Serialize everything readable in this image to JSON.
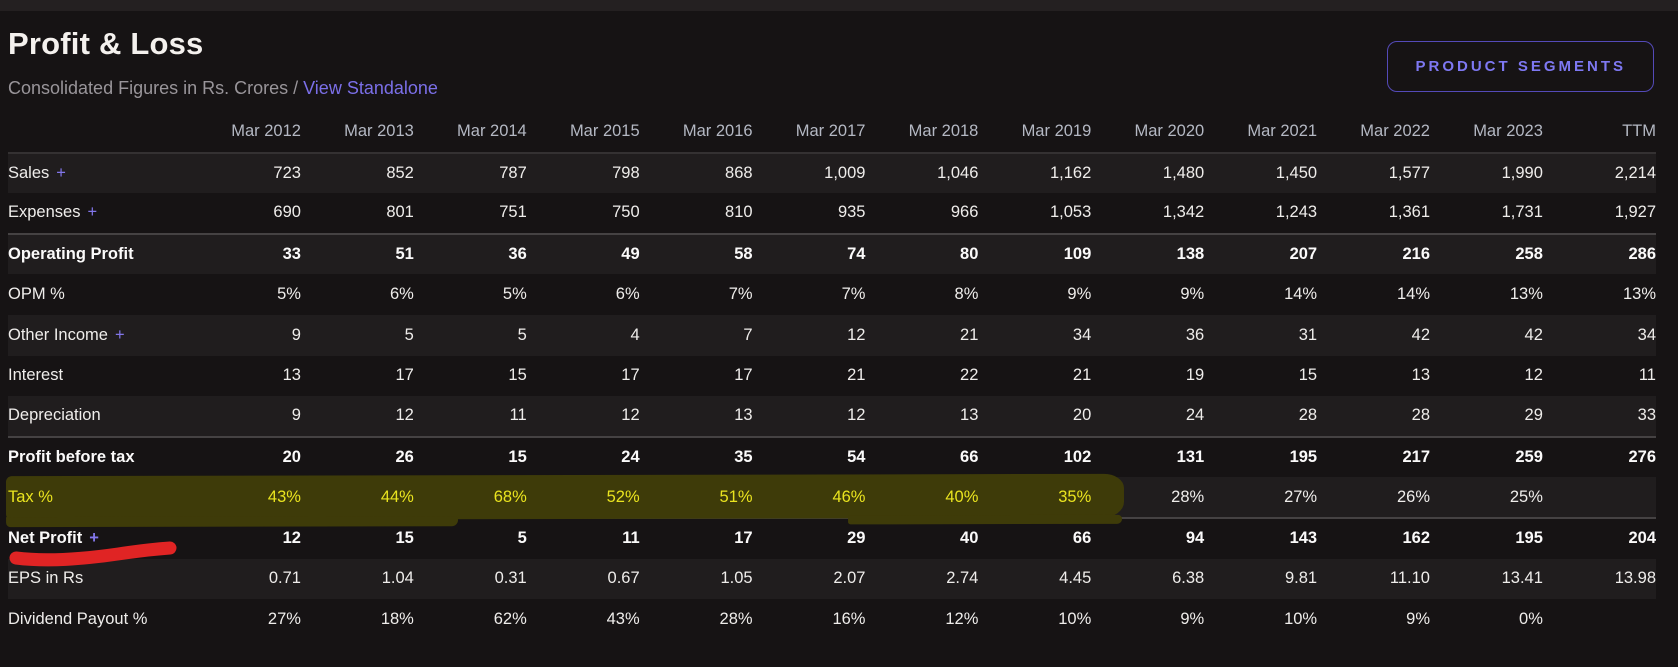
{
  "header": {
    "title": "Profit & Loss",
    "subtitle_prefix": "Consolidated Figures in Rs. Crores / ",
    "standalone_link": "View Standalone",
    "segments_button": "PRODUCT SEGMENTS"
  },
  "table": {
    "columns": [
      "Mar 2012",
      "Mar 2013",
      "Mar 2014",
      "Mar 2015",
      "Mar 2016",
      "Mar 2017",
      "Mar 2018",
      "Mar 2019",
      "Mar 2020",
      "Mar 2021",
      "Mar 2022",
      "Mar 2023",
      "TTM"
    ],
    "rows": [
      {
        "label": "Sales",
        "plus": true,
        "bold": false,
        "section": false,
        "values": [
          "723",
          "852",
          "787",
          "798",
          "868",
          "1,009",
          "1,046",
          "1,162",
          "1,480",
          "1,450",
          "1,577",
          "1,990",
          "2,214"
        ]
      },
      {
        "label": "Expenses",
        "plus": true,
        "bold": false,
        "section": false,
        "values": [
          "690",
          "801",
          "751",
          "750",
          "810",
          "935",
          "966",
          "1,053",
          "1,342",
          "1,243",
          "1,361",
          "1,731",
          "1,927"
        ]
      },
      {
        "label": "Operating Profit",
        "plus": false,
        "bold": true,
        "section": true,
        "values": [
          "33",
          "51",
          "36",
          "49",
          "58",
          "74",
          "80",
          "109",
          "138",
          "207",
          "216",
          "258",
          "286"
        ]
      },
      {
        "label": "OPM %",
        "plus": false,
        "bold": false,
        "section": false,
        "values": [
          "5%",
          "6%",
          "5%",
          "6%",
          "7%",
          "7%",
          "8%",
          "9%",
          "9%",
          "14%",
          "14%",
          "13%",
          "13%"
        ]
      },
      {
        "label": "Other Income",
        "plus": true,
        "bold": false,
        "section": false,
        "values": [
          "9",
          "5",
          "5",
          "4",
          "7",
          "12",
          "21",
          "34",
          "36",
          "31",
          "42",
          "42",
          "34"
        ]
      },
      {
        "label": "Interest",
        "plus": false,
        "bold": false,
        "section": false,
        "values": [
          "13",
          "17",
          "15",
          "17",
          "17",
          "21",
          "22",
          "21",
          "19",
          "15",
          "13",
          "12",
          "11"
        ]
      },
      {
        "label": "Depreciation",
        "plus": false,
        "bold": false,
        "section": false,
        "values": [
          "9",
          "12",
          "11",
          "12",
          "13",
          "12",
          "13",
          "20",
          "24",
          "28",
          "28",
          "29",
          "33"
        ]
      },
      {
        "label": "Profit before tax",
        "plus": false,
        "bold": true,
        "section": true,
        "values": [
          "20",
          "26",
          "15",
          "24",
          "35",
          "54",
          "66",
          "102",
          "131",
          "195",
          "217",
          "259",
          "276"
        ]
      },
      {
        "label": "Tax %",
        "plus": false,
        "bold": false,
        "section": false,
        "highlight": true,
        "highlight_count": 8,
        "values": [
          "43%",
          "44%",
          "68%",
          "52%",
          "51%",
          "46%",
          "40%",
          "35%",
          "28%",
          "27%",
          "26%",
          "25%",
          ""
        ]
      },
      {
        "label": "Net Profit",
        "plus": true,
        "bold": true,
        "section": true,
        "values": [
          "12",
          "15",
          "5",
          "11",
          "17",
          "29",
          "40",
          "66",
          "94",
          "143",
          "162",
          "195",
          "204"
        ]
      },
      {
        "label": "EPS in Rs",
        "plus": false,
        "bold": false,
        "section": false,
        "values": [
          "0.71",
          "1.04",
          "0.31",
          "0.67",
          "1.05",
          "2.07",
          "2.74",
          "4.45",
          "6.38",
          "9.81",
          "11.10",
          "13.41",
          "13.98"
        ]
      },
      {
        "label": "Dividend Payout %",
        "plus": false,
        "bold": false,
        "section": false,
        "values": [
          "27%",
          "18%",
          "62%",
          "43%",
          "28%",
          "16%",
          "12%",
          "10%",
          "9%",
          "10%",
          "9%",
          "0%",
          ""
        ]
      }
    ]
  },
  "annotations": {
    "highlight": {
      "type": "marker-highlight",
      "row": "Tax %",
      "from_column": "Mar 2012",
      "to_column": "Mar 2019",
      "band_color": "#3e3b09",
      "text_color": "#eae41f"
    },
    "underline": {
      "type": "hand-drawn-stroke",
      "under": "Tax %",
      "color": "#e02424"
    }
  },
  "colors": {
    "page_bg": "#161314",
    "row_light": "#201d1e",
    "row_dark": "#161314",
    "section_divider": "#454243",
    "header_text": "#b4b8c3",
    "body_text": "#efedeb",
    "accent_purple": "#7b6fe8",
    "button_purple": "#7e78f2"
  }
}
